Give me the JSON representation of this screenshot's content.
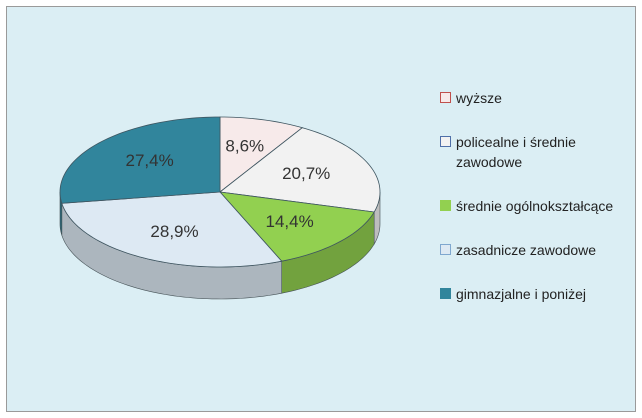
{
  "chart_data": {
    "type": "pie3d",
    "categories": [
      "wyższe",
      "policealne i średnie zawodowe",
      "średnie ogólnokształcące",
      "zasadnicze zawodowe",
      "gimnazjalne i poniżej"
    ],
    "values": [
      8.6,
      20.7,
      14.4,
      28.9,
      27.4
    ],
    "value_labels": [
      "8,6%",
      "20,7%",
      "14,4%",
      "28,9%",
      "27,4%"
    ],
    "colors": [
      "#f7eaea",
      "#f2f2f2",
      "#92d050",
      "#dde9f3",
      "#31859c"
    ],
    "edge_colors": [
      "#c0504d",
      "#4f6fa8",
      "#92d050",
      "#7fa7cf",
      "#31859c"
    ],
    "legend": "right"
  }
}
